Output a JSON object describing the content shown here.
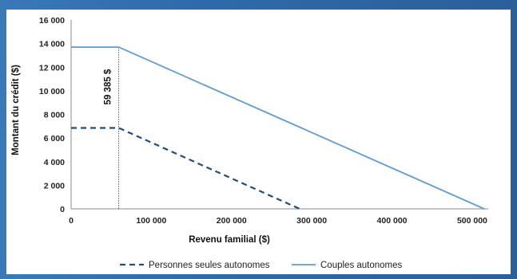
{
  "chart_data": {
    "type": "line",
    "xlabel": "Revenu familial ($)",
    "ylabel": "Montant du crédit ($)",
    "xlim": [
      0,
      520000
    ],
    "ylim": [
      0,
      16000
    ],
    "x_ticks": [
      0,
      100000,
      200000,
      300000,
      400000,
      500000
    ],
    "x_tick_labels": [
      "0",
      "100 000",
      "200 000",
      "300 000",
      "400 000",
      "500 000"
    ],
    "y_ticks": [
      0,
      2000,
      4000,
      6000,
      8000,
      10000,
      12000,
      14000,
      16000
    ],
    "y_tick_labels": [
      "0",
      "2 000",
      "4 000",
      "6 000",
      "8 000",
      "10 000",
      "12 000",
      "14 000",
      "16 000"
    ],
    "series": [
      {
        "name": "Personnes seules autonomes",
        "style": "dashed",
        "color": "#1f4e79",
        "x": [
          0,
          59385,
          285000
        ],
        "y": [
          6850,
          6850,
          0
        ]
      },
      {
        "name": "Couples autonomes",
        "style": "solid",
        "color": "#5b9bd5",
        "x": [
          0,
          59385,
          515000
        ],
        "y": [
          13700,
          13700,
          0
        ]
      }
    ],
    "annotations": [
      {
        "text": "59 385 $",
        "x": 59385
      }
    ],
    "grid": false,
    "legend": "bottom"
  }
}
